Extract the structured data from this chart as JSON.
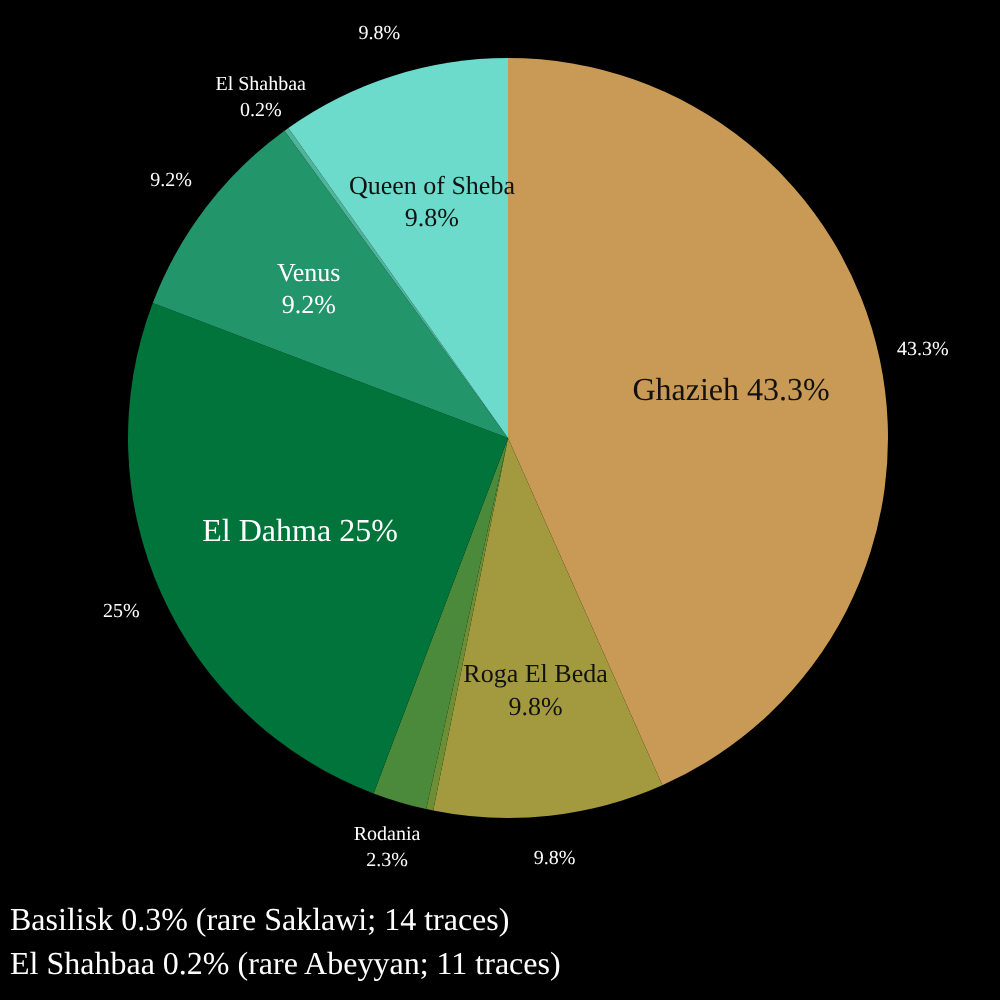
{
  "chart_data": {
    "type": "pie",
    "categories": [
      "Ghazieh",
      "Roga El Beda",
      null,
      "Rodania",
      "El Dahma",
      "Venus",
      "El Shahbaa",
      "Queen of Sheba"
    ],
    "values": [
      43.3,
      9.8,
      0.3,
      2.3,
      25,
      9.2,
      0.2,
      9.8
    ],
    "colors": [
      "#c99a55",
      "#a39a40",
      "#6e8e35",
      "#4a8a3a",
      "#00743a",
      "#22956a",
      "#4fb59a",
      "#6cdbcc"
    ],
    "value_labels": [
      "43.3%",
      "9.8%",
      null,
      "2.3%",
      "25%",
      "9.2%",
      "0.2%",
      "9.8%"
    ],
    "data_labels": true,
    "legend": false,
    "annotations": [
      "Basilisk 0.3% (rare Saklawi; 14 traces)",
      "El Shahbaa 0.2% (rare Abeyyan; 11 traces)"
    ]
  }
}
